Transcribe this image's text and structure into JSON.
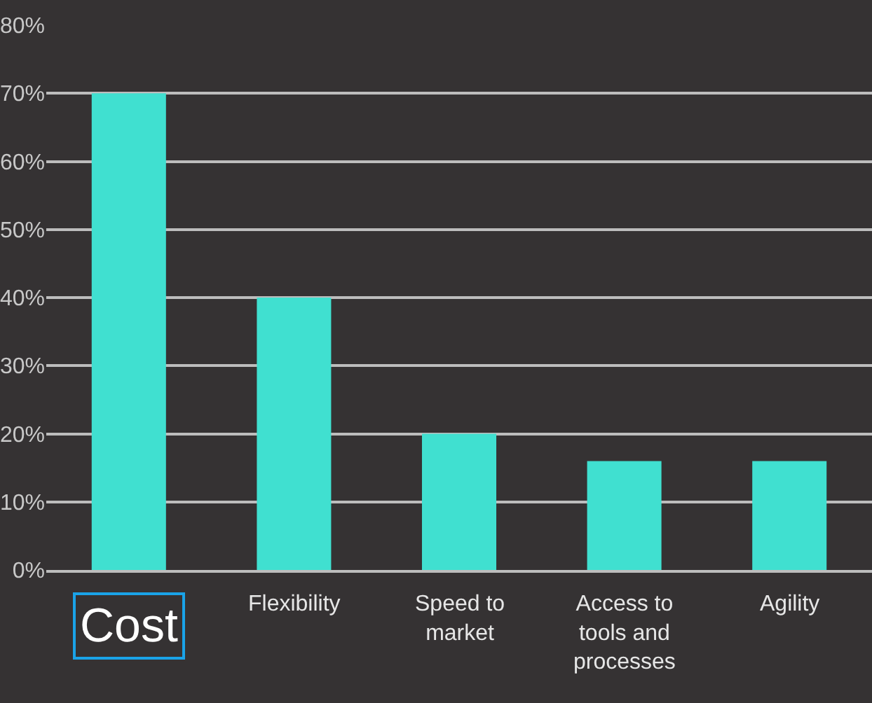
{
  "chart_data": {
    "type": "bar",
    "categories": [
      "Cost",
      "Flexibility",
      "Speed to market",
      "Access to tools and processes",
      "Agility"
    ],
    "values": [
      70,
      40,
      20,
      16,
      16
    ],
    "color": "#40e0d0",
    "ylim": [
      0,
      80
    ],
    "yticks": [
      {
        "value": 0,
        "label": "0%"
      },
      {
        "value": 10,
        "label": "10%"
      },
      {
        "value": 20,
        "label": "20%"
      },
      {
        "value": 30,
        "label": "30%"
      },
      {
        "value": 40,
        "label": "40%"
      },
      {
        "value": 50,
        "label": "50%"
      },
      {
        "value": 60,
        "label": "60%"
      },
      {
        "value": 70,
        "label": "70%"
      },
      {
        "value": 80,
        "label": "80%"
      }
    ],
    "grid": "y",
    "legend": false
  }
}
